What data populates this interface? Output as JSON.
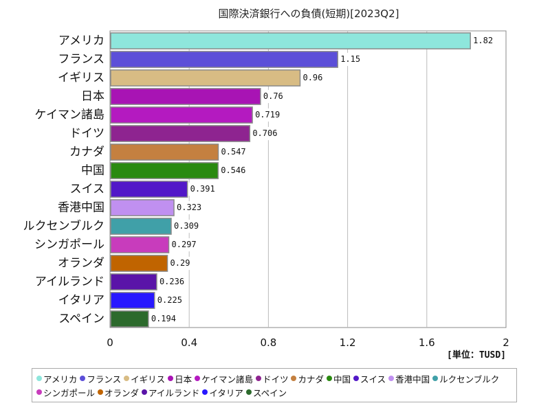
{
  "chart_data": {
    "type": "bar",
    "orientation": "horizontal",
    "title": "国際決済銀行への負債(短期)[2023Q2]",
    "unit_label": "[単位：TUSD]",
    "categories": [
      "アメリカ",
      "フランス",
      "イギリス",
      "日本",
      "ケイマン諸島",
      "ドイツ",
      "カナダ",
      "中国",
      "スイス",
      "香港中国",
      "ルクセンブルク",
      "シンガポール",
      "オランダ",
      "アイルランド",
      "イタリア",
      "スペイン"
    ],
    "values": [
      1.82,
      1.15,
      0.96,
      0.76,
      0.719,
      0.706,
      0.547,
      0.546,
      0.391,
      0.323,
      0.309,
      0.297,
      0.29,
      0.236,
      0.225,
      0.194
    ],
    "value_labels": [
      "1.82",
      "1.15",
      "0.96",
      "0.76",
      "0.719",
      "0.706",
      "0.547",
      "0.546",
      "0.391",
      "0.323",
      "0.309",
      "0.297",
      "0.29",
      "0.236",
      "0.225",
      "0.194"
    ],
    "colors": [
      "#8ee6dc",
      "#5c4fd8",
      "#d8bc84",
      "#a814b4",
      "#b41ac0",
      "#8e2490",
      "#c48040",
      "#2a8a10",
      "#5218c8",
      "#c090f0",
      "#40a0a8",
      "#c83cbc",
      "#c06400",
      "#5a14a8",
      "#2818ff",
      "#2c6a2c"
    ],
    "xlim": [
      0,
      2
    ],
    "xticks": [
      0,
      0.4,
      0.8,
      1.2,
      1.6,
      2
    ],
    "xtick_labels": [
      "0",
      "0.4",
      "0.8",
      "1.2",
      "1.6",
      "2"
    ],
    "grid": true,
    "legend_position": "bottom"
  }
}
